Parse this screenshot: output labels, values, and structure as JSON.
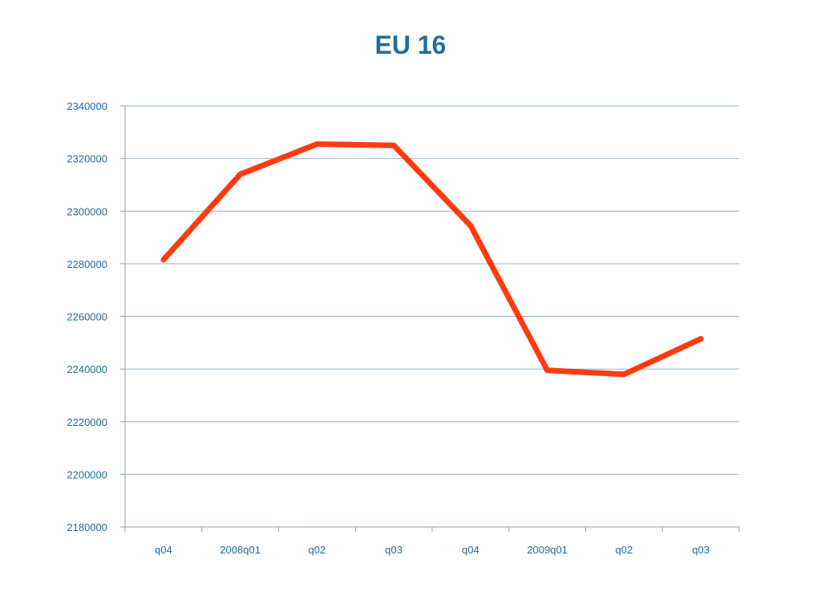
{
  "colors": {
    "title": "#1f6e9e",
    "axis_text": "#1f6e9e",
    "grid": "#9fb3c8",
    "axis": "#8aa2b8",
    "line": "#ff3b12"
  },
  "chart_data": {
    "type": "line",
    "title": "EU 16",
    "xlabel": "",
    "ylabel": "",
    "categories": [
      "q04",
      "2008q01",
      "q02",
      "q03",
      "q04",
      "2009q01",
      "q02",
      "q03"
    ],
    "series": [
      {
        "values": [
          2281500,
          2314000,
          2325500,
          2325000,
          2294500,
          2239500,
          2238000,
          2251500
        ]
      }
    ],
    "ylim": [
      2180000,
      2340000
    ],
    "yticks": [
      2180000,
      2200000,
      2220000,
      2240000,
      2260000,
      2280000,
      2300000,
      2320000,
      2340000
    ],
    "grid": true,
    "legend": "none"
  }
}
